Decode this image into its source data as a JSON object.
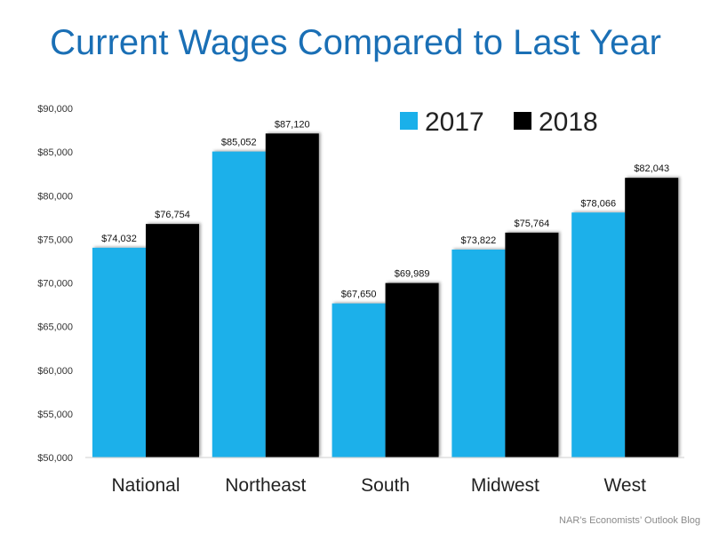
{
  "title": "Current Wages Compared to Last Year",
  "source": "NAR’s Economists’ Outlook Blog",
  "chart_data": {
    "type": "bar",
    "title": "Current Wages Compared to Last Year",
    "categories": [
      "National",
      "Northeast",
      "South",
      "Midwest",
      "West"
    ],
    "series": [
      {
        "name": "2017",
        "color": "#1ab0ea",
        "values": [
          74032,
          85052,
          67650,
          73822,
          78066
        ],
        "labels": [
          "$74,032",
          "$85,052",
          "$67,650",
          "$73,822",
          "$78,066"
        ]
      },
      {
        "name": "2018",
        "color": "#000000",
        "values": [
          76754,
          87120,
          69989,
          75764,
          82043
        ],
        "labels": [
          "$76,754",
          "$87,120",
          "$69,989",
          "$75,764",
          "$82,043"
        ]
      }
    ],
    "ylim": [
      50000,
      90000
    ],
    "yticks": [
      50000,
      55000,
      60000,
      65000,
      70000,
      75000,
      80000,
      85000,
      90000
    ],
    "ytick_labels": [
      "$50,000",
      "$55,000",
      "$60,000",
      "$65,000",
      "$70,000",
      "$75,000",
      "$80,000",
      "$85,000",
      "$90,000"
    ],
    "grid": false,
    "legend": "top-right"
  }
}
